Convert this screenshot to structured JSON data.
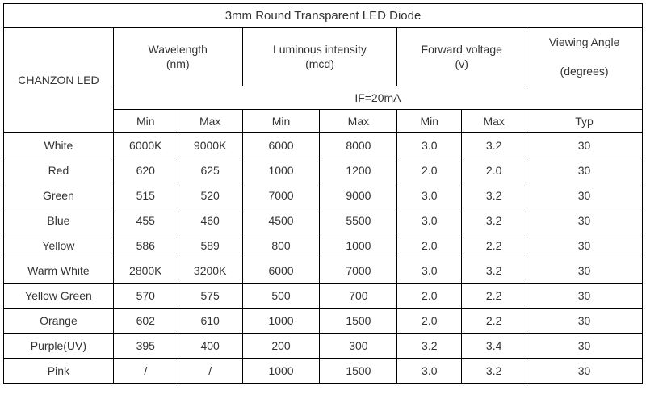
{
  "title": "3mm Round Transparent LED Diode",
  "brand": "CHANZON LED",
  "columns": {
    "wavelength": {
      "label": "Wavelength",
      "unit": "(nm)"
    },
    "luminous": {
      "label": "Luminous intensity",
      "unit": "(mcd)"
    },
    "voltage": {
      "label": "Forward voltage",
      "unit": "(v)"
    },
    "angle": {
      "label": "Viewing Angle",
      "unit": "(degrees)"
    }
  },
  "condition": "IF=20mA",
  "subheaders": {
    "min": "Min",
    "max": "Max",
    "typ": "Typ"
  },
  "rows": [
    {
      "name": "White",
      "wl_min": "6000K",
      "wl_max": "9000K",
      "li_min": "6000",
      "li_max": "8000",
      "fv_min": "3.0",
      "fv_max": "3.2",
      "angle": "30"
    },
    {
      "name": "Red",
      "wl_min": "620",
      "wl_max": "625",
      "li_min": "1000",
      "li_max": "1200",
      "fv_min": "2.0",
      "fv_max": "2.0",
      "angle": "30"
    },
    {
      "name": "Green",
      "wl_min": "515",
      "wl_max": "520",
      "li_min": "7000",
      "li_max": "9000",
      "fv_min": "3.0",
      "fv_max": "3.2",
      "angle": "30"
    },
    {
      "name": "Blue",
      "wl_min": "455",
      "wl_max": "460",
      "li_min": "4500",
      "li_max": "5500",
      "fv_min": "3.0",
      "fv_max": "3.2",
      "angle": "30"
    },
    {
      "name": "Yellow",
      "wl_min": "586",
      "wl_max": "589",
      "li_min": "800",
      "li_max": "1000",
      "fv_min": "2.0",
      "fv_max": "2.2",
      "angle": "30"
    },
    {
      "name": "Warm White",
      "wl_min": "2800K",
      "wl_max": "3200K",
      "li_min": "6000",
      "li_max": "7000",
      "fv_min": "3.0",
      "fv_max": "3.2",
      "angle": "30"
    },
    {
      "name": "Yellow Green",
      "wl_min": "570",
      "wl_max": "575",
      "li_min": "500",
      "li_max": "700",
      "fv_min": "2.0",
      "fv_max": "2.2",
      "angle": "30"
    },
    {
      "name": "Orange",
      "wl_min": "602",
      "wl_max": "610",
      "li_min": "1000",
      "li_max": "1500",
      "fv_min": "2.0",
      "fv_max": "2.2",
      "angle": "30"
    },
    {
      "name": "Purple(UV)",
      "wl_min": "395",
      "wl_max": "400",
      "li_min": "200",
      "li_max": "300",
      "fv_min": "3.2",
      "fv_max": "3.4",
      "angle": "30"
    },
    {
      "name": "Pink",
      "wl_min": "/",
      "wl_max": "/",
      "li_min": "1000",
      "li_max": "1500",
      "fv_min": "3.0",
      "fv_max": "3.2",
      "angle": "30"
    }
  ]
}
